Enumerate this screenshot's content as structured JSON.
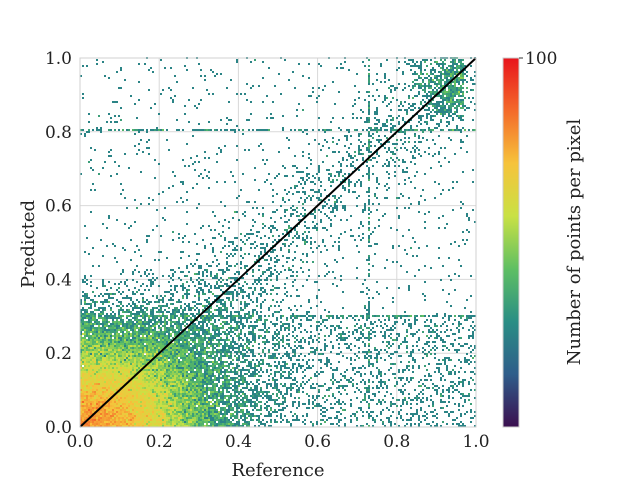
{
  "chart_data": {
    "type": "heatmap",
    "subtype": "density-scatter (2D histogram)",
    "title": "",
    "xlabel": "Reference",
    "ylabel": "Predicted",
    "xlim": [
      0.0,
      1.0
    ],
    "ylim": [
      0.0,
      1.0
    ],
    "x_ticks": [
      "0.0",
      "0.2",
      "0.4",
      "0.6",
      "0.8",
      "1.0"
    ],
    "y_ticks": [
      "0.0",
      "0.2",
      "0.4",
      "0.6",
      "0.8",
      "1.0"
    ],
    "grid": true,
    "reference_line": {
      "from": [
        0.0,
        0.0
      ],
      "to": [
        1.0,
        1.0
      ],
      "color": "#000000"
    },
    "density": {
      "main_cluster_center": [
        0.03,
        0.03
      ],
      "main_cluster_spread_x": 0.15,
      "main_cluster_spread_y": 0.12,
      "dense_band_upper_y": 0.3,
      "streak_y_values": [
        0.8,
        0.3
      ],
      "streak_x_values": [
        0.73
      ],
      "upper_right_cluster_center": [
        0.97,
        0.92
      ],
      "sparse_scatter": "uniform over the unit square"
    },
    "colorbar": {
      "label": "Number of points per pixel",
      "min": 0,
      "max": 100,
      "tick_labels": [
        "100"
      ],
      "colormap": "spectral",
      "colors": [
        "#3b0f4f",
        "#2f5d8a",
        "#2a8e85",
        "#5fbf63",
        "#c9e144",
        "#f6c33b",
        "#f46a2a",
        "#e8141c"
      ]
    }
  }
}
